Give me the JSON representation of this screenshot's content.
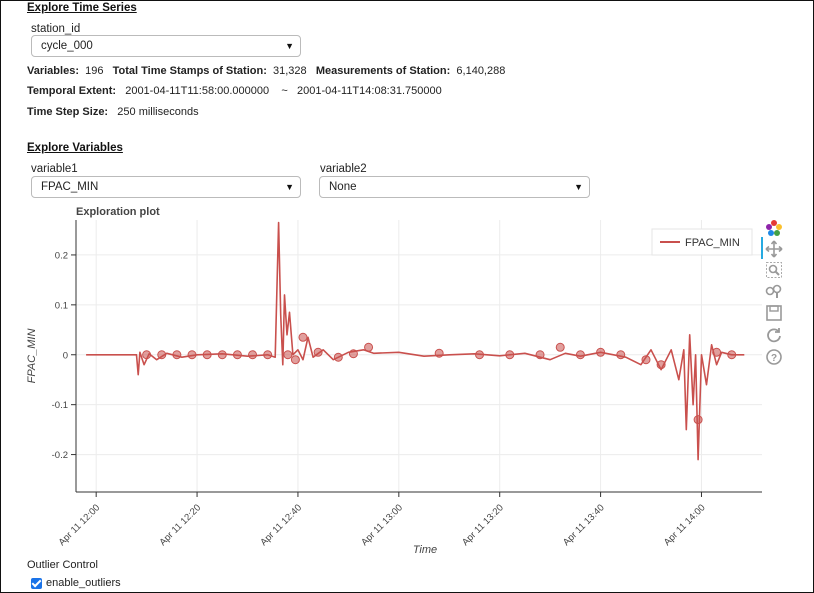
{
  "time_series": {
    "section_title": "Explore Time Series",
    "station_label": "station_id",
    "station_value": "cycle_000"
  },
  "stats": {
    "variables_label": "Variables:",
    "variables_value": "196",
    "timestamps_label": "Total Time Stamps of Station:",
    "timestamps_value": "31,328",
    "measurements_label": "Measurements of Station:",
    "measurements_value": "6,140,288",
    "temporal_label": "Temporal Extent:",
    "temporal_start": "2001-04-11T11:58:00.000000",
    "temporal_sep": "~",
    "temporal_end": "2001-04-11T14:08:31.750000",
    "step_label": "Time Step Size:",
    "step_value": "250 milliseconds"
  },
  "variables": {
    "section_title": "Explore Variables",
    "var1_label": "variable1",
    "var1_value": "FPAC_MIN",
    "var2_label": "variable2",
    "var2_value": "None"
  },
  "outlier": {
    "title": "Outlier Control",
    "checkbox_label": "enable_outliers",
    "checked": true
  },
  "toolbar_icons": [
    "bokeh-logo-icon",
    "pan-icon",
    "box-zoom-icon",
    "wheel-zoom-icon",
    "save-icon",
    "reset-icon",
    "help-icon"
  ],
  "chart_data": {
    "type": "line",
    "title": "Exploration plot",
    "xlabel": "Time",
    "ylabel": "FPAC_MIN",
    "legend": "top-right",
    "grid": true,
    "color": "#c9504d",
    "xlim": [
      "2001-04-11T11:56:00",
      "2001-04-11T14:12:00"
    ],
    "ylim": [
      -0.275,
      0.27
    ],
    "x_ticks": [
      "Apr 11 12:00",
      "Apr 11 12:20",
      "Apr 11 12:40",
      "Apr 11 13:00",
      "Apr 11 13:20",
      "Apr 11 13:40",
      "Apr 11 14:00"
    ],
    "y_ticks": [
      0.2,
      0.1,
      0,
      -0.1,
      -0.2
    ],
    "y_tick_labels": [
      "0.2",
      "0.1",
      "0",
      "-0.1",
      "-0.2"
    ],
    "series": [
      {
        "name": "FPAC_MIN",
        "points": [
          [
            "2001-04-11T11:58:00",
            0.0
          ],
          [
            "2001-04-11T12:08:00",
            0.0
          ],
          [
            "2001-04-11T12:08:20",
            -0.04
          ],
          [
            "2001-04-11T12:08:40",
            0.005
          ],
          [
            "2001-04-11T12:09:30",
            -0.02
          ],
          [
            "2001-04-11T12:10:30",
            0.002
          ],
          [
            "2001-04-11T12:12:00",
            -0.01
          ],
          [
            "2001-04-11T12:14:00",
            0.003
          ],
          [
            "2001-04-11T12:17:00",
            -0.005
          ],
          [
            "2001-04-11T12:20:00",
            0.0
          ],
          [
            "2001-04-11T12:25:00",
            0.002
          ],
          [
            "2001-04-11T12:30:00",
            -0.003
          ],
          [
            "2001-04-11T12:34:00",
            0.0
          ],
          [
            "2001-04-11T12:35:30",
            -0.005
          ],
          [
            "2001-04-11T12:36:10",
            0.265
          ],
          [
            "2001-04-11T12:36:35",
            0.08
          ],
          [
            "2001-04-11T12:37:00",
            -0.02
          ],
          [
            "2001-04-11T12:37:20",
            0.12
          ],
          [
            "2001-04-11T12:37:50",
            0.04
          ],
          [
            "2001-04-11T12:38:20",
            0.085
          ],
          [
            "2001-04-11T12:39:00",
            0.0
          ],
          [
            "2001-04-11T12:40:00",
            0.01
          ],
          [
            "2001-04-11T12:41:00",
            -0.01
          ],
          [
            "2001-04-11T12:42:00",
            0.035
          ],
          [
            "2001-04-11T12:43:00",
            -0.005
          ],
          [
            "2001-04-11T12:45:00",
            0.01
          ],
          [
            "2001-04-11T12:47:00",
            -0.01
          ],
          [
            "2001-04-11T12:50:00",
            0.005
          ],
          [
            "2001-04-11T12:53:00",
            0.01
          ],
          [
            "2001-04-11T12:55:00",
            0.003
          ],
          [
            "2001-04-11T13:00:00",
            0.005
          ],
          [
            "2001-04-11T13:05:00",
            -0.003
          ],
          [
            "2001-04-11T13:10:00",
            0.0
          ],
          [
            "2001-04-11T13:15:00",
            0.002
          ],
          [
            "2001-04-11T13:20:00",
            -0.002
          ],
          [
            "2001-04-11T13:25:00",
            0.003
          ],
          [
            "2001-04-11T13:30:00",
            -0.01
          ],
          [
            "2001-04-11T13:33:00",
            0.003
          ],
          [
            "2001-04-11T13:36:00",
            -0.003
          ],
          [
            "2001-04-11T13:40:00",
            0.005
          ],
          [
            "2001-04-11T13:45:00",
            -0.005
          ],
          [
            "2001-04-11T13:48:00",
            -0.02
          ],
          [
            "2001-04-11T13:50:00",
            0.01
          ],
          [
            "2001-04-11T13:52:00",
            -0.03
          ],
          [
            "2001-04-11T13:54:00",
            0.01
          ],
          [
            "2001-04-11T13:55:30",
            -0.05
          ],
          [
            "2001-04-11T13:56:30",
            0.01
          ],
          [
            "2001-04-11T13:57:00",
            -0.15
          ],
          [
            "2001-04-11T13:57:40",
            0.04
          ],
          [
            "2001-04-11T13:58:20",
            -0.1
          ],
          [
            "2001-04-11T13:58:50",
            0.0
          ],
          [
            "2001-04-11T13:59:20",
            -0.21
          ],
          [
            "2001-04-11T14:00:00",
            0.0
          ],
          [
            "2001-04-11T14:01:00",
            -0.06
          ],
          [
            "2001-04-11T14:02:00",
            0.02
          ],
          [
            "2001-04-11T14:03:00",
            -0.02
          ],
          [
            "2001-04-11T14:04:00",
            0.005
          ],
          [
            "2001-04-11T14:06:00",
            0.0
          ],
          [
            "2001-04-11T14:08:30",
            0.0
          ]
        ],
        "markers": [
          [
            "2001-04-11T12:10:00",
            0.0
          ],
          [
            "2001-04-11T12:13:00",
            0.0
          ],
          [
            "2001-04-11T12:16:00",
            0.0
          ],
          [
            "2001-04-11T12:19:00",
            0.0
          ],
          [
            "2001-04-11T12:22:00",
            0.0
          ],
          [
            "2001-04-11T12:25:00",
            0.0
          ],
          [
            "2001-04-11T12:28:00",
            0.0
          ],
          [
            "2001-04-11T12:31:00",
            0.0
          ],
          [
            "2001-04-11T12:34:00",
            0.0
          ],
          [
            "2001-04-11T12:38:00",
            0.0
          ],
          [
            "2001-04-11T12:39:30",
            -0.01
          ],
          [
            "2001-04-11T12:41:00",
            0.035
          ],
          [
            "2001-04-11T12:44:00",
            0.005
          ],
          [
            "2001-04-11T12:48:00",
            -0.005
          ],
          [
            "2001-04-11T12:51:00",
            0.002
          ],
          [
            "2001-04-11T12:54:00",
            0.015
          ],
          [
            "2001-04-11T13:08:00",
            0.003
          ],
          [
            "2001-04-11T13:16:00",
            0.0
          ],
          [
            "2001-04-11T13:22:00",
            0.0
          ],
          [
            "2001-04-11T13:28:00",
            0.0
          ],
          [
            "2001-04-11T13:32:00",
            0.015
          ],
          [
            "2001-04-11T13:36:00",
            0.0
          ],
          [
            "2001-04-11T13:40:00",
            0.005
          ],
          [
            "2001-04-11T13:44:00",
            0.0
          ],
          [
            "2001-04-11T13:49:00",
            -0.01
          ],
          [
            "2001-04-11T13:52:00",
            -0.02
          ],
          [
            "2001-04-11T13:59:20",
            -0.13
          ],
          [
            "2001-04-11T14:03:00",
            0.005
          ],
          [
            "2001-04-11T14:06:00",
            0.0
          ]
        ]
      }
    ]
  }
}
